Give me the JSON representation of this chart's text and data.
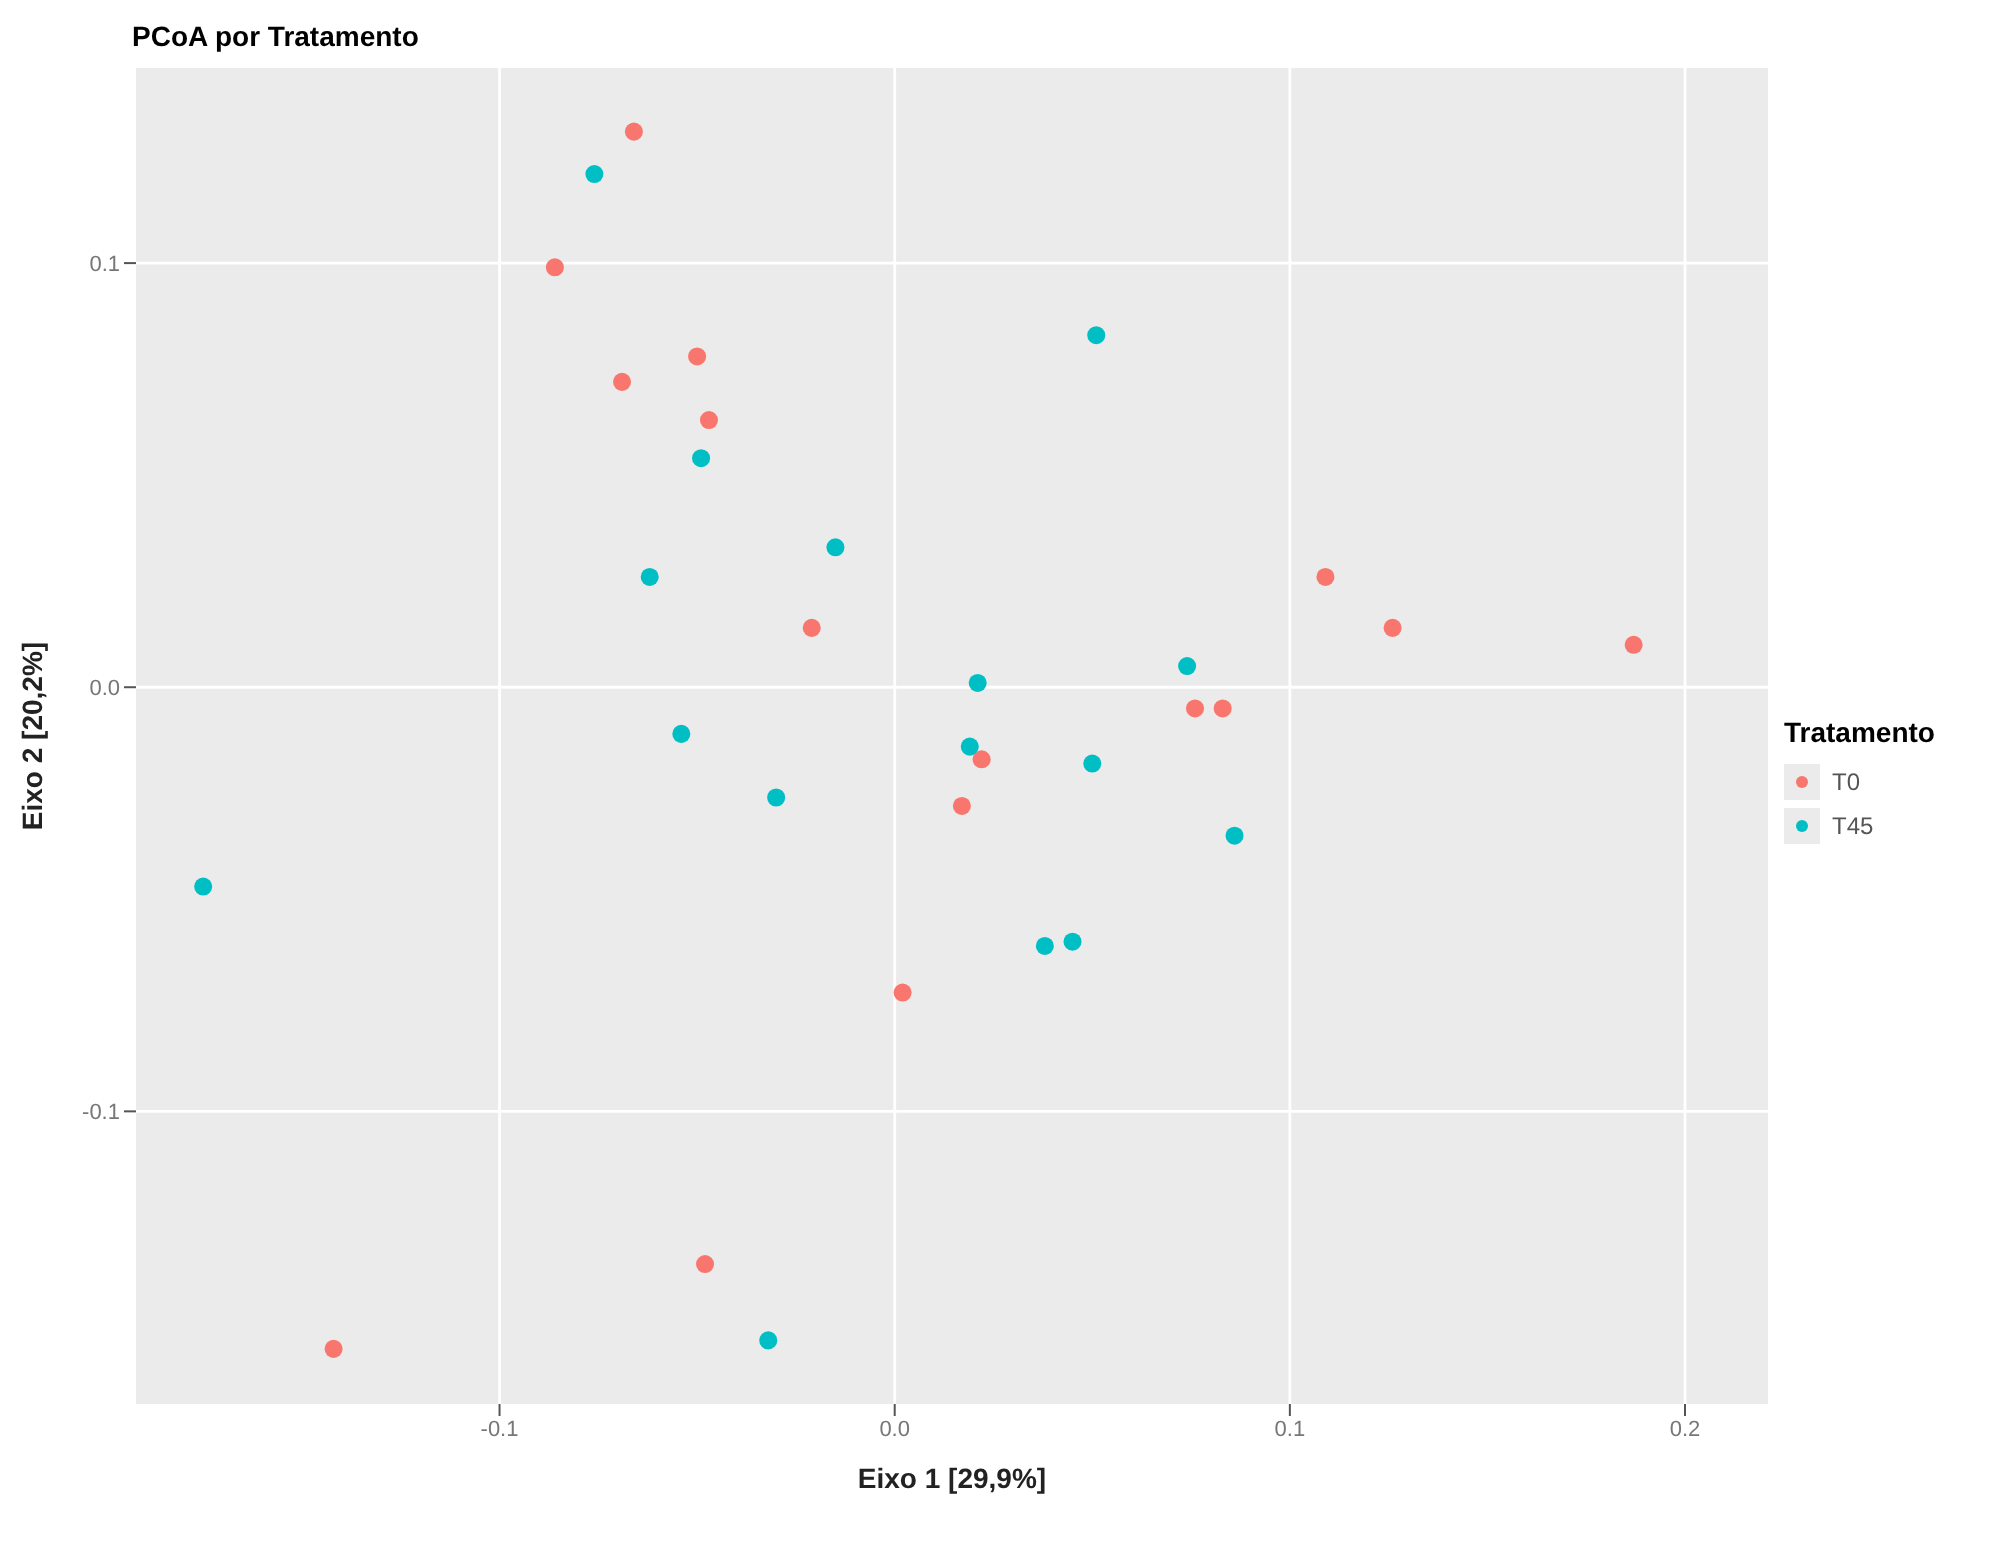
{
  "chart_data": {
    "type": "scatter",
    "title": "PCoA por Tratamento",
    "xlabel": "Eixo 1 [29,9%]",
    "ylabel": "Eixo 2 [20,2%]",
    "legend_title": "Tratamento",
    "legend": "right",
    "grid": true,
    "marker": "circle",
    "xlim": [
      -0.192,
      0.221
    ],
    "ylim": [
      -0.169,
      0.146
    ],
    "xticks": [
      {
        "value": -0.1,
        "label": "-0.1"
      },
      {
        "value": 0,
        "label": "0.0"
      },
      {
        "value": 0.1,
        "label": "0.1"
      },
      {
        "value": 0.2,
        "label": "0.2"
      }
    ],
    "yticks": [
      {
        "value": -0.1,
        "label": "-0.1"
      },
      {
        "value": 0,
        "label": "0.0"
      },
      {
        "value": 0.1,
        "label": "0.1"
      }
    ],
    "series": [
      {
        "name": "T0",
        "color": "#f8766d",
        "x": [
          -0.066,
          -0.086,
          -0.069,
          -0.05,
          -0.047,
          -0.021,
          0.109,
          0.126,
          0.187,
          0.076,
          0.083,
          0.022,
          0.017,
          0.002,
          -0.048,
          -0.142
        ],
        "values": [
          0.131,
          0.099,
          0.072,
          0.078,
          0.063,
          0.014,
          0.026,
          0.014,
          0.01,
          -0.005,
          -0.005,
          -0.017,
          -0.028,
          -0.072,
          -0.136,
          -0.156
        ]
      },
      {
        "name": "T45",
        "color": "#00bfc4",
        "x": [
          -0.076,
          0.051,
          -0.049,
          -0.062,
          -0.015,
          0.021,
          0.074,
          -0.054,
          0.019,
          0.05,
          0.086,
          -0.03,
          0.038,
          0.045,
          -0.175,
          -0.032
        ],
        "values": [
          0.121,
          0.083,
          0.054,
          0.026,
          0.033,
          0.001,
          0.005,
          -0.011,
          -0.014,
          -0.018,
          -0.035,
          -0.026,
          -0.061,
          -0.06,
          -0.047,
          -0.154
        ]
      }
    ]
  }
}
